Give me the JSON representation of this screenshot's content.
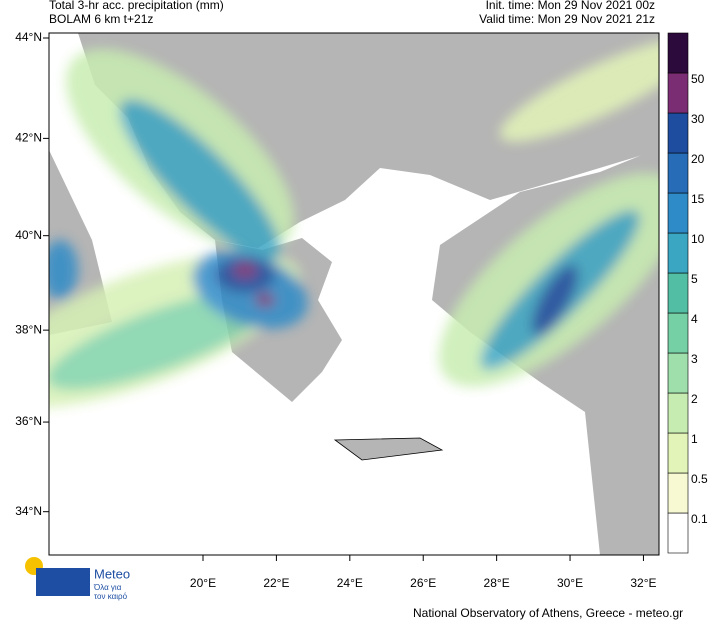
{
  "header": {
    "title": "Total 3-hr acc. precipitation (mm)",
    "subtitle": "BOLAM 6 km t+21z",
    "init_time": "Init. time: Mon 29 Nov 2021 00z",
    "valid_time": "Valid time: Mon 29 Nov 2021 21z"
  },
  "map": {
    "lat_ticks": [
      {
        "value": 44,
        "label": "44°N"
      },
      {
        "value": 42,
        "label": "42°N"
      },
      {
        "value": 40,
        "label": "40°N"
      },
      {
        "value": 38,
        "label": "38°N"
      },
      {
        "value": 36,
        "label": "36°N"
      },
      {
        "value": 34,
        "label": "34°N"
      }
    ],
    "lon_ticks": [
      {
        "value": 20,
        "label": "20°E"
      },
      {
        "value": 22,
        "label": "22°E"
      },
      {
        "value": 24,
        "label": "24°E"
      },
      {
        "value": 26,
        "label": "26°E"
      },
      {
        "value": 28,
        "label": "28°E"
      },
      {
        "value": 30,
        "label": "30°E"
      },
      {
        "value": 32,
        "label": "32°E"
      }
    ]
  },
  "legend": {
    "levels": [
      "0.1",
      "0.5",
      "1",
      "2",
      "3",
      "4",
      "5",
      "10",
      "15",
      "20",
      "30",
      "50"
    ],
    "colors": [
      "#ffffff",
      "#f6f9d2",
      "#e3f4b8",
      "#c6ecb1",
      "#9fdfac",
      "#76d0a6",
      "#52bea4",
      "#3aa6c2",
      "#2f8bc8",
      "#276cb6",
      "#1e4c9e",
      "#7a2d72",
      "#2d0a3c"
    ]
  },
  "logo": {
    "name": "Meteo",
    "tagline_1": "Όλα για",
    "tagline_2": "τον καιρό"
  },
  "footer": {
    "credit": "National Observatory of Athens, Greece - meteo.gr"
  }
}
